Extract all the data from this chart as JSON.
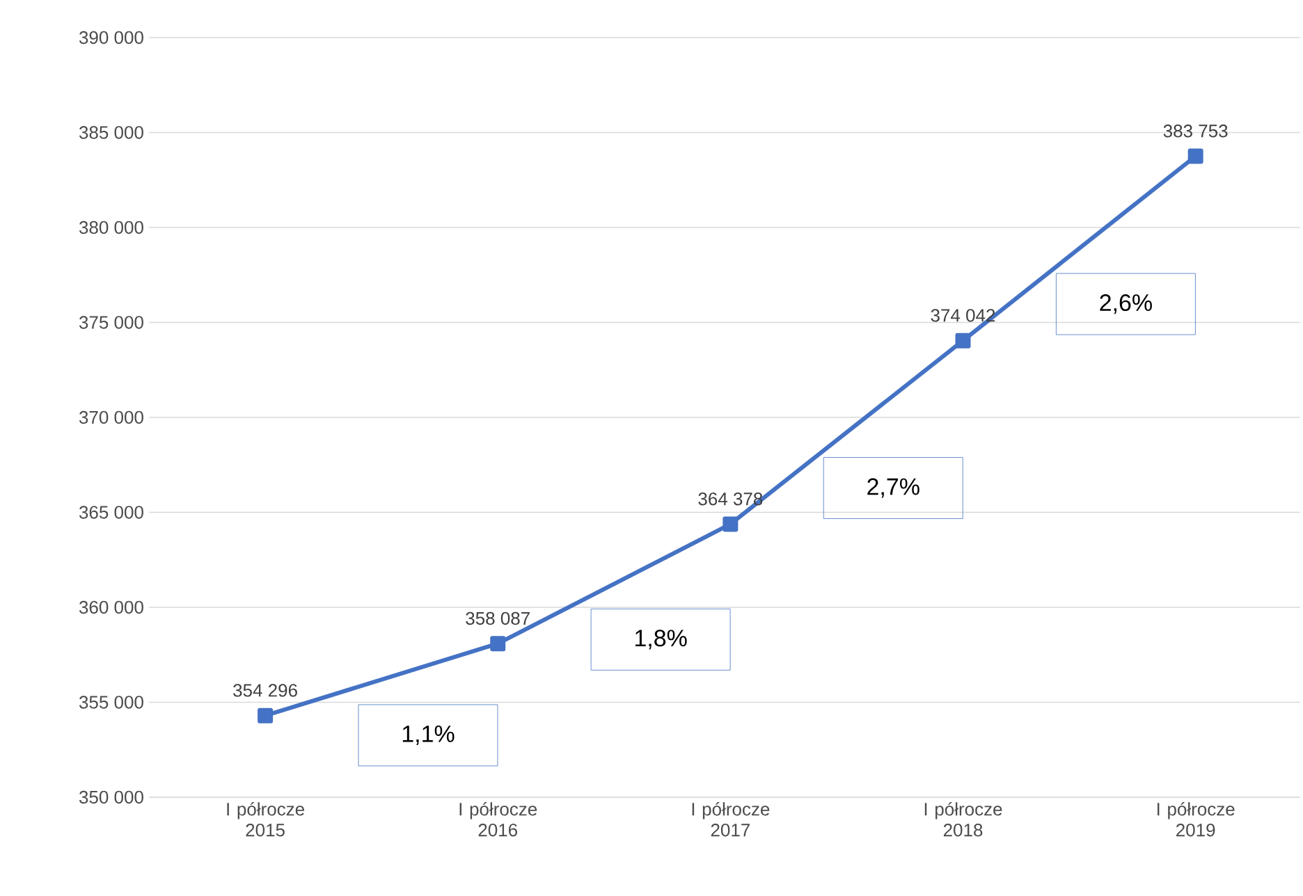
{
  "chart_data": {
    "type": "line",
    "categories": [
      "I półrocze 2015",
      "I półrocze 2016",
      "I półrocze 2017",
      "I półrocze 2018",
      "I półrocze 2019"
    ],
    "series": [
      {
        "color": "#4472c4",
        "values": [
          354296,
          358087,
          364378,
          374042,
          383753
        ],
        "value_labels": [
          "354 296",
          "358 087",
          "364 378",
          "374 042",
          "383 753"
        ]
      }
    ],
    "ylim": [
      350000,
      390000
    ],
    "yticks": [
      {
        "value": 350000,
        "label": "350 000"
      },
      {
        "value": 355000,
        "label": "355 000"
      },
      {
        "value": 360000,
        "label": "360 000"
      },
      {
        "value": 365000,
        "label": "365 000"
      },
      {
        "value": 370000,
        "label": "370 000"
      },
      {
        "value": 375000,
        "label": "375 000"
      },
      {
        "value": 380000,
        "label": "380 000"
      },
      {
        "value": 385000,
        "label": "385 000"
      },
      {
        "value": 390000,
        "label": "390 000"
      }
    ],
    "annotations": [
      "1,1%",
      "1,8%",
      "2,7%",
      "2,6%"
    ],
    "grid": "y",
    "marker": "square",
    "line_style": "solid"
  }
}
